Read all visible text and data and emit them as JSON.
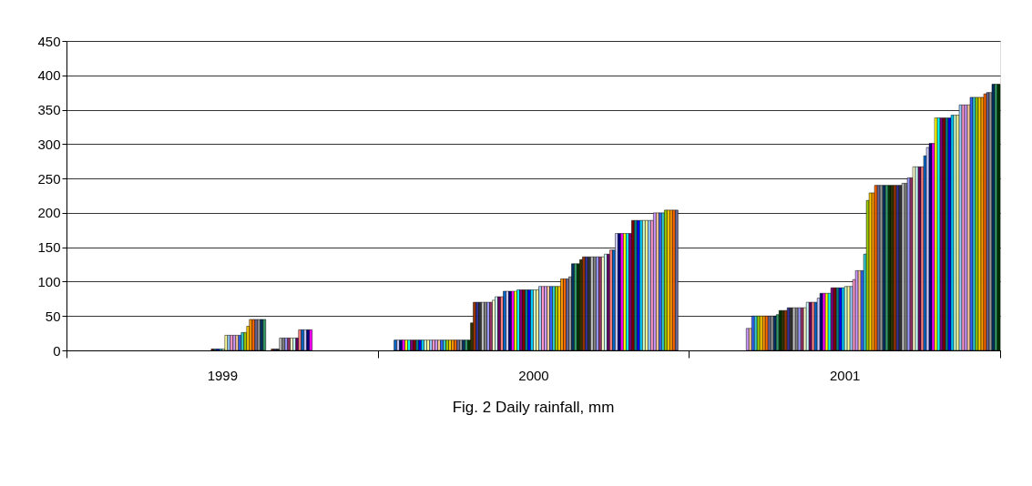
{
  "chart_data": {
    "type": "bar",
    "title": "Fig. 2 Daily rainfall, mm",
    "categories": [
      "1999",
      "2000",
      "2001"
    ],
    "ylim": [
      0,
      450
    ],
    "yticks": [
      0,
      50,
      100,
      150,
      200,
      250,
      300,
      350,
      400,
      450
    ],
    "grid": "y",
    "series": [
      {
        "color": "#9999ff",
        "values": [
          null,
          null,
          null
        ]
      },
      {
        "color": "#993366",
        "values": [
          null,
          null,
          null
        ]
      },
      {
        "color": "#ffffcc",
        "values": [
          null,
          null,
          null
        ]
      },
      {
        "color": "#ccffff",
        "values": [
          null,
          null,
          null
        ]
      },
      {
        "color": "#660066",
        "values": [
          null,
          null,
          null
        ]
      },
      {
        "color": "#ff8080",
        "values": [
          null,
          null,
          null
        ]
      },
      {
        "color": "#0066cc",
        "values": [
          null,
          15,
          null
        ]
      },
      {
        "color": "#ccccff",
        "values": [
          null,
          15,
          null
        ]
      },
      {
        "color": "#000080",
        "values": [
          null,
          15,
          null
        ]
      },
      {
        "color": "#ff00ff",
        "values": [
          null,
          15,
          null
        ]
      },
      {
        "color": "#ffff00",
        "values": [
          null,
          15,
          null
        ]
      },
      {
        "color": "#00ffff",
        "values": [
          null,
          15,
          null
        ]
      },
      {
        "color": "#800080",
        "values": [
          null,
          15,
          null
        ]
      },
      {
        "color": "#800000",
        "values": [
          null,
          15,
          null
        ]
      },
      {
        "color": "#008080",
        "values": [
          null,
          15,
          null
        ]
      },
      {
        "color": "#0000ff",
        "values": [
          null,
          15,
          null
        ]
      },
      {
        "color": "#00ccff",
        "values": [
          null,
          15,
          null
        ]
      },
      {
        "color": "#ccffcc",
        "values": [
          null,
          15,
          null
        ]
      },
      {
        "color": "#ffff99",
        "values": [
          null,
          15,
          null
        ]
      },
      {
        "color": "#99ccff",
        "values": [
          null,
          15,
          null
        ]
      },
      {
        "color": "#ff99cc",
        "values": [
          null,
          15,
          null
        ]
      },
      {
        "color": "#cc99ff",
        "values": [
          null,
          15,
          32
        ]
      },
      {
        "color": "#ffcc99",
        "values": [
          null,
          15,
          32
        ]
      },
      {
        "color": "#3366ff",
        "values": [
          null,
          15,
          50
        ]
      },
      {
        "color": "#33cccc",
        "values": [
          null,
          15,
          50
        ]
      },
      {
        "color": "#99cc00",
        "values": [
          null,
          15,
          50
        ]
      },
      {
        "color": "#ffcc00",
        "values": [
          null,
          15,
          50
        ]
      },
      {
        "color": "#ff9900",
        "values": [
          null,
          15,
          50
        ]
      },
      {
        "color": "#ff6600",
        "values": [
          null,
          15,
          50
        ]
      },
      {
        "color": "#666699",
        "values": [
          null,
          15,
          50
        ]
      },
      {
        "color": "#969696",
        "values": [
          null,
          15,
          50
        ]
      },
      {
        "color": "#003366",
        "values": [
          null,
          15,
          50
        ]
      },
      {
        "color": "#339966",
        "values": [
          null,
          15,
          52
        ]
      },
      {
        "color": "#003300",
        "values": [
          null,
          15,
          58
        ]
      },
      {
        "color": "#333300",
        "values": [
          null,
          40,
          58
        ]
      },
      {
        "color": "#993300",
        "values": [
          null,
          70,
          58
        ]
      },
      {
        "color": "#333399",
        "values": [
          null,
          70,
          62
        ]
      },
      {
        "color": "#333333",
        "values": [
          null,
          70,
          62
        ]
      },
      {
        "color": "#c0c0c0",
        "values": [
          null,
          70,
          62
        ]
      },
      {
        "color": "#808080",
        "values": [
          null,
          70,
          62
        ]
      },
      {
        "color": "#9999ff",
        "values": [
          null,
          70,
          62
        ]
      },
      {
        "color": "#993366",
        "values": [
          null,
          70,
          62
        ]
      },
      {
        "color": "#ffffcc",
        "values": [
          null,
          73,
          62
        ]
      },
      {
        "color": "#ccffff",
        "values": [
          null,
          78,
          70
        ]
      },
      {
        "color": "#660066",
        "values": [
          null,
          78,
          70
        ]
      },
      {
        "color": "#ff8080",
        "values": [
          null,
          78,
          70
        ]
      },
      {
        "color": "#0066cc",
        "values": [
          null,
          86,
          70
        ]
      },
      {
        "color": "#ccccff",
        "values": [
          null,
          86,
          76
        ]
      },
      {
        "color": "#000080",
        "values": [
          null,
          86,
          83
        ]
      },
      {
        "color": "#ff00ff",
        "values": [
          null,
          86,
          83
        ]
      },
      {
        "color": "#ffff00",
        "values": [
          null,
          86,
          83
        ]
      },
      {
        "color": "#00ffff",
        "values": [
          null,
          88,
          83
        ]
      },
      {
        "color": "#800080",
        "values": [
          null,
          88,
          91
        ]
      },
      {
        "color": "#800000",
        "values": [
          2,
          88,
          91
        ]
      },
      {
        "color": "#008080",
        "values": [
          2,
          88,
          91
        ]
      },
      {
        "color": "#0000ff",
        "values": [
          2,
          88,
          91
        ]
      },
      {
        "color": "#00ccff",
        "values": [
          2,
          88,
          91
        ]
      },
      {
        "color": "#ccffcc",
        "values": [
          2,
          88,
          93
        ]
      },
      {
        "color": "#ffff99",
        "values": [
          22,
          88,
          93
        ]
      },
      {
        "color": "#99ccff",
        "values": [
          22,
          93,
          93
        ]
      },
      {
        "color": "#ff99cc",
        "values": [
          22,
          93,
          103
        ]
      },
      {
        "color": "#cc99ff",
        "values": [
          22,
          93,
          116
        ]
      },
      {
        "color": "#ffcc99",
        "values": [
          22,
          93,
          116
        ]
      },
      {
        "color": "#3366ff",
        "values": [
          22,
          93,
          116
        ]
      },
      {
        "color": "#33cccc",
        "values": [
          26,
          93,
          140
        ]
      },
      {
        "color": "#99cc00",
        "values": [
          26,
          93,
          218
        ]
      },
      {
        "color": "#ffcc00",
        "values": [
          35,
          93,
          229
        ]
      },
      {
        "color": "#ff9900",
        "values": [
          45,
          104,
          229
        ]
      },
      {
        "color": "#ff6600",
        "values": [
          45,
          104,
          240
        ]
      },
      {
        "color": "#666699",
        "values": [
          45,
          104,
          240
        ]
      },
      {
        "color": "#969696",
        "values": [
          45,
          107,
          240
        ]
      },
      {
        "color": "#003366",
        "values": [
          45,
          126,
          240
        ]
      },
      {
        "color": "#339966",
        "values": [
          45,
          126,
          240
        ]
      },
      {
        "color": "#003300",
        "values": [
          null,
          126,
          240
        ]
      },
      {
        "color": "#333300",
        "values": [
          null,
          132,
          240
        ]
      },
      {
        "color": "#993300",
        "values": [
          2,
          136,
          240
        ]
      },
      {
        "color": "#333399",
        "values": [
          2,
          136,
          240
        ]
      },
      {
        "color": "#333333",
        "values": [
          2,
          136,
          240
        ]
      },
      {
        "color": "#c0c0c0",
        "values": [
          18,
          136,
          243
        ]
      },
      {
        "color": "#808080",
        "values": [
          18,
          136,
          243
        ]
      },
      {
        "color": "#9999ff",
        "values": [
          18,
          136,
          251
        ]
      },
      {
        "color": "#993366",
        "values": [
          18,
          136,
          251
        ]
      },
      {
        "color": "#ffffcc",
        "values": [
          18,
          136,
          267
        ]
      },
      {
        "color": "#ccffff",
        "values": [
          18,
          140,
          267
        ]
      },
      {
        "color": "#660066",
        "values": [
          18,
          140,
          267
        ]
      },
      {
        "color": "#ff8080",
        "values": [
          30,
          146,
          267
        ]
      },
      {
        "color": "#0066cc",
        "values": [
          30,
          146,
          283
        ]
      },
      {
        "color": "#ccccff",
        "values": [
          30,
          170,
          295
        ]
      },
      {
        "color": "#000080",
        "values": [
          30,
          170,
          301
        ]
      },
      {
        "color": "#ff00ff",
        "values": [
          30,
          170,
          301
        ]
      },
      {
        "color": "#ffff00",
        "values": [
          null,
          170,
          338
        ]
      },
      {
        "color": "#00ffff",
        "values": [
          null,
          170,
          338
        ]
      },
      {
        "color": "#800080",
        "values": [
          null,
          170,
          338
        ]
      },
      {
        "color": "#800000",
        "values": [
          null,
          189,
          338
        ]
      },
      {
        "color": "#008080",
        "values": [
          null,
          189,
          338
        ]
      },
      {
        "color": "#0000ff",
        "values": [
          null,
          189,
          338
        ]
      },
      {
        "color": "#00ccff",
        "values": [
          null,
          189,
          342
        ]
      },
      {
        "color": "#ccffcc",
        "values": [
          null,
          189,
          342
        ]
      },
      {
        "color": "#ffff99",
        "values": [
          null,
          189,
          342
        ]
      },
      {
        "color": "#99ccff",
        "values": [
          null,
          189,
          357
        ]
      },
      {
        "color": "#ff99cc",
        "values": [
          null,
          189,
          357
        ]
      },
      {
        "color": "#cc99ff",
        "values": [
          null,
          200,
          357
        ]
      },
      {
        "color": "#ffcc99",
        "values": [
          null,
          200,
          357
        ]
      },
      {
        "color": "#3366ff",
        "values": [
          null,
          200,
          368
        ]
      },
      {
        "color": "#33cccc",
        "values": [
          null,
          200,
          368
        ]
      },
      {
        "color": "#99cc00",
        "values": [
          null,
          204,
          368
        ]
      },
      {
        "color": "#ffcc00",
        "values": [
          null,
          204,
          368
        ]
      },
      {
        "color": "#ff9900",
        "values": [
          null,
          204,
          368
        ]
      },
      {
        "color": "#ff6600",
        "values": [
          null,
          204,
          373
        ]
      },
      {
        "color": "#666699",
        "values": [
          null,
          204,
          375
        ]
      },
      {
        "color": "#969696",
        "values": [
          null,
          null,
          375
        ]
      },
      {
        "color": "#003366",
        "values": [
          null,
          null,
          387
        ]
      },
      {
        "color": "#339966",
        "values": [
          null,
          null,
          387
        ]
      },
      {
        "color": "#003300",
        "values": [
          null,
          null,
          387
        ]
      }
    ]
  }
}
